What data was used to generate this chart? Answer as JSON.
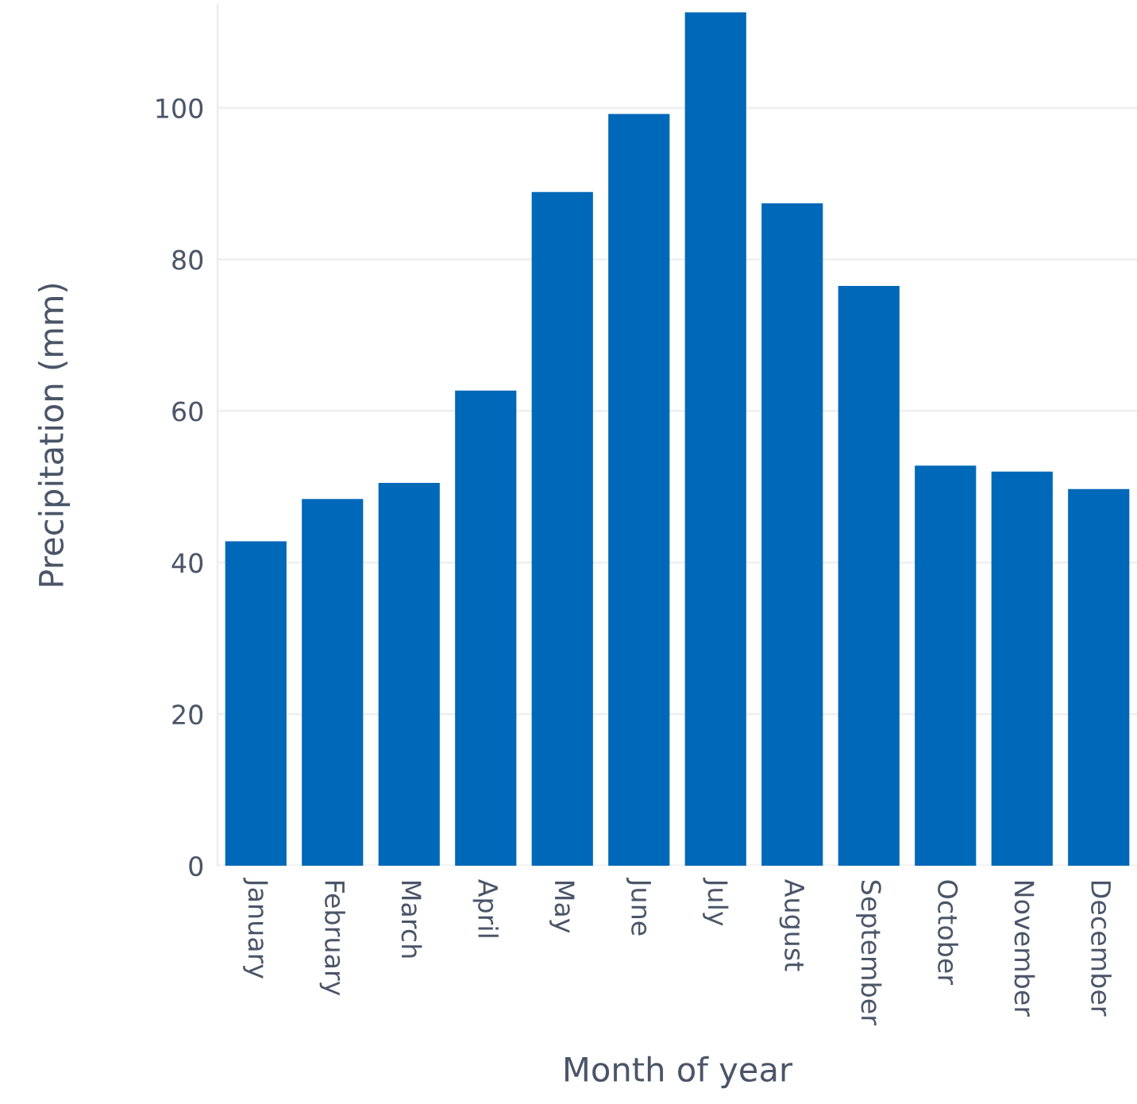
{
  "chart_data": {
    "type": "bar",
    "xlabel": "Month of year",
    "ylabel": "Precipitation (mm)",
    "categories": [
      "January",
      "February",
      "March",
      "April",
      "May",
      "June",
      "July",
      "August",
      "September",
      "October",
      "November",
      "December"
    ],
    "values": [
      42.8,
      48.4,
      50.5,
      62.7,
      88.9,
      99.2,
      112.6,
      87.4,
      76.5,
      52.8,
      52.0,
      49.7
    ],
    "color": "#0068b8",
    "ylim": [
      0,
      113.6
    ],
    "yticks": [
      0,
      20,
      40,
      60,
      80,
      100
    ],
    "grid": "y"
  }
}
